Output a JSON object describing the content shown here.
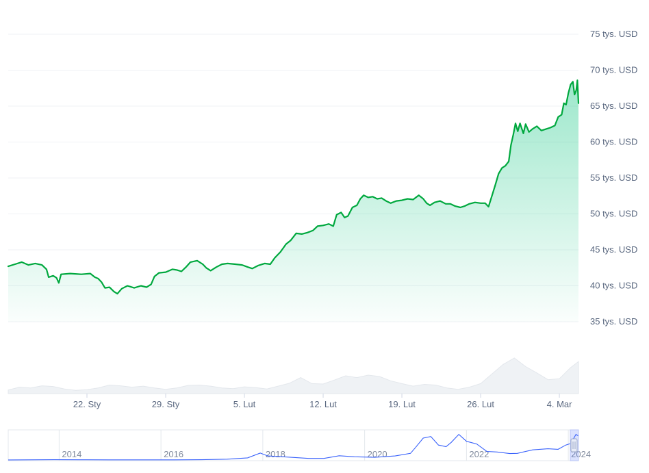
{
  "chart_data": [
    {
      "type": "area",
      "title": "",
      "xlabel": "",
      "ylabel": "",
      "ylim": [
        35000,
        75000
      ],
      "y_ticks": [
        {
          "value": 75000,
          "label": "75 tys. USD"
        },
        {
          "value": 70000,
          "label": "70 tys. USD"
        },
        {
          "value": 65000,
          "label": "65 tys. USD"
        },
        {
          "value": 60000,
          "label": "60 tys. USD"
        },
        {
          "value": 55000,
          "label": "55 tys. USD"
        },
        {
          "value": 50000,
          "label": "50 tys. USD"
        },
        {
          "value": 45000,
          "label": "45 tys. USD"
        },
        {
          "value": 40000,
          "label": "40 tys. USD"
        },
        {
          "value": 35000,
          "label": "35 tys. USD"
        }
      ],
      "x_ticks": [
        {
          "day": 7,
          "label": "22. Sty"
        },
        {
          "day": 14,
          "label": "29. Sty"
        },
        {
          "day": 21,
          "label": "5. Lut"
        },
        {
          "day": 28,
          "label": "12. Lut"
        },
        {
          "day": 35,
          "label": "19. Lut"
        },
        {
          "day": 42,
          "label": "26. Lut"
        },
        {
          "day": 49,
          "label": "4. Mar"
        }
      ],
      "x_range_days": [
        0,
        50.7
      ],
      "grid": true,
      "line_color": "#16c784",
      "line_stroke": "#00a83e",
      "series": [
        {
          "values": [
            [
              0.0,
              42700
            ],
            [
              0.6,
              43000
            ],
            [
              1.2,
              43300
            ],
            [
              1.8,
              42900
            ],
            [
              2.4,
              43100
            ],
            [
              3.0,
              42900
            ],
            [
              3.4,
              42300
            ],
            [
              3.6,
              41200
            ],
            [
              4.0,
              41400
            ],
            [
              4.3,
              41100
            ],
            [
              4.5,
              40400
            ],
            [
              4.7,
              41600
            ],
            [
              5.5,
              41700
            ],
            [
              6.5,
              41600
            ],
            [
              7.3,
              41700
            ],
            [
              7.7,
              41200
            ],
            [
              8.0,
              41000
            ],
            [
              8.3,
              40500
            ],
            [
              8.6,
              39700
            ],
            [
              9.0,
              39800
            ],
            [
              9.4,
              39200
            ],
            [
              9.7,
              38900
            ],
            [
              10.1,
              39600
            ],
            [
              10.6,
              40000
            ],
            [
              11.2,
              39700
            ],
            [
              11.8,
              40000
            ],
            [
              12.3,
              39800
            ],
            [
              12.7,
              40200
            ],
            [
              13.0,
              41300
            ],
            [
              13.4,
              41800
            ],
            [
              14.0,
              41900
            ],
            [
              14.6,
              42300
            ],
            [
              15.0,
              42200
            ],
            [
              15.4,
              42000
            ],
            [
              15.8,
              42600
            ],
            [
              16.2,
              43300
            ],
            [
              16.8,
              43500
            ],
            [
              17.3,
              43000
            ],
            [
              17.6,
              42500
            ],
            [
              18.0,
              42100
            ],
            [
              18.5,
              42600
            ],
            [
              19.0,
              43000
            ],
            [
              19.5,
              43100
            ],
            [
              20.2,
              43000
            ],
            [
              20.8,
              42900
            ],
            [
              21.3,
              42600
            ],
            [
              21.7,
              42400
            ],
            [
              22.2,
              42800
            ],
            [
              22.8,
              43100
            ],
            [
              23.3,
              43000
            ],
            [
              23.7,
              43900
            ],
            [
              24.2,
              44700
            ],
            [
              24.7,
              45800
            ],
            [
              25.1,
              46300
            ],
            [
              25.6,
              47300
            ],
            [
              26.1,
              47200
            ],
            [
              26.6,
              47400
            ],
            [
              27.1,
              47700
            ],
            [
              27.5,
              48300
            ],
            [
              28.0,
              48400
            ],
            [
              28.5,
              48600
            ],
            [
              28.9,
              48300
            ],
            [
              29.2,
              49900
            ],
            [
              29.6,
              50200
            ],
            [
              29.9,
              49500
            ],
            [
              30.2,
              49700
            ],
            [
              30.6,
              50900
            ],
            [
              31.0,
              51200
            ],
            [
              31.3,
              52100
            ],
            [
              31.6,
              52600
            ],
            [
              32.0,
              52300
            ],
            [
              32.4,
              52400
            ],
            [
              32.8,
              52100
            ],
            [
              33.2,
              52200
            ],
            [
              33.6,
              51800
            ],
            [
              34.0,
              51500
            ],
            [
              34.5,
              51800
            ],
            [
              35.0,
              51900
            ],
            [
              35.5,
              52100
            ],
            [
              36.0,
              52000
            ],
            [
              36.5,
              52600
            ],
            [
              36.9,
              52100
            ],
            [
              37.2,
              51500
            ],
            [
              37.5,
              51200
            ],
            [
              37.9,
              51600
            ],
            [
              38.4,
              51800
            ],
            [
              38.9,
              51400
            ],
            [
              39.3,
              51400
            ],
            [
              39.7,
              51100
            ],
            [
              40.2,
              50900
            ],
            [
              40.6,
              51100
            ],
            [
              41.0,
              51400
            ],
            [
              41.5,
              51600
            ],
            [
              42.0,
              51500
            ],
            [
              42.4,
              51500
            ],
            [
              42.7,
              51000
            ],
            [
              43.0,
              52500
            ],
            [
              43.3,
              54000
            ],
            [
              43.6,
              55600
            ],
            [
              43.9,
              56400
            ],
            [
              44.2,
              56700
            ],
            [
              44.5,
              57300
            ],
            [
              44.7,
              59600
            ],
            [
              44.9,
              61000
            ],
            [
              45.1,
              62600
            ],
            [
              45.3,
              61500
            ],
            [
              45.5,
              62600
            ],
            [
              45.8,
              61200
            ],
            [
              46.0,
              62500
            ],
            [
              46.3,
              61400
            ],
            [
              46.6,
              61800
            ],
            [
              47.0,
              62200
            ],
            [
              47.4,
              61600
            ],
            [
              47.8,
              61800
            ],
            [
              48.2,
              62000
            ],
            [
              48.6,
              62300
            ],
            [
              48.9,
              63500
            ],
            [
              49.2,
              63800
            ],
            [
              49.4,
              65400
            ],
            [
              49.6,
              65200
            ],
            [
              49.8,
              66800
            ],
            [
              50.0,
              68000
            ],
            [
              50.2,
              68400
            ],
            [
              50.35,
              66600
            ],
            [
              50.5,
              67200
            ],
            [
              50.6,
              68600
            ],
            [
              50.7,
              65400
            ]
          ]
        }
      ]
    },
    {
      "type": "area",
      "title": "",
      "xlabel": "",
      "ylabel": "",
      "grid": false,
      "fill_color": "#eff2f5",
      "series": [
        {
          "values": [
            [
              0,
              0.1
            ],
            [
              1,
              0.18
            ],
            [
              2,
              0.16
            ],
            [
              3,
              0.22
            ],
            [
              4,
              0.2
            ],
            [
              5,
              0.13
            ],
            [
              6,
              0.09
            ],
            [
              7,
              0.11
            ],
            [
              8,
              0.16
            ],
            [
              9,
              0.24
            ],
            [
              10,
              0.22
            ],
            [
              11,
              0.18
            ],
            [
              12,
              0.21
            ],
            [
              13,
              0.16
            ],
            [
              14,
              0.12
            ],
            [
              15,
              0.16
            ],
            [
              16,
              0.23
            ],
            [
              17,
              0.24
            ],
            [
              18,
              0.21
            ],
            [
              19,
              0.16
            ],
            [
              20,
              0.14
            ],
            [
              21,
              0.19
            ],
            [
              22,
              0.17
            ],
            [
              23,
              0.13
            ],
            [
              24,
              0.21
            ],
            [
              25,
              0.29
            ],
            [
              26,
              0.45
            ],
            [
              27,
              0.28
            ],
            [
              28,
              0.27
            ],
            [
              29,
              0.38
            ],
            [
              30,
              0.5
            ],
            [
              31,
              0.45
            ],
            [
              32,
              0.52
            ],
            [
              33,
              0.48
            ],
            [
              34,
              0.36
            ],
            [
              35,
              0.28
            ],
            [
              36,
              0.21
            ],
            [
              37,
              0.26
            ],
            [
              38,
              0.24
            ],
            [
              39,
              0.16
            ],
            [
              40,
              0.12
            ],
            [
              41,
              0.18
            ],
            [
              42,
              0.28
            ],
            [
              43,
              0.55
            ],
            [
              44,
              0.82
            ],
            [
              45,
              1.0
            ],
            [
              46,
              0.76
            ],
            [
              47,
              0.58
            ],
            [
              48,
              0.39
            ],
            [
              49,
              0.42
            ],
            [
              50,
              0.73
            ],
            [
              50.7,
              0.9
            ]
          ]
        }
      ]
    },
    {
      "type": "line",
      "title": "",
      "xlabel": "",
      "ylabel": "",
      "grid": true,
      "line_color": "#3861fb",
      "x_ticks": [
        "2014",
        "2016",
        "2018",
        "2020",
        "2022",
        "2024"
      ],
      "x_range": [
        2013.0,
        2024.2
      ],
      "series": [
        {
          "values": [
            [
              2013.0,
              0.002
            ],
            [
              2013.9,
              0.01
            ],
            [
              2014.4,
              0.008
            ],
            [
              2015.0,
              0.004
            ],
            [
              2015.6,
              0.004
            ],
            [
              2016.2,
              0.006
            ],
            [
              2016.8,
              0.01
            ],
            [
              2017.3,
              0.03
            ],
            [
              2017.7,
              0.08
            ],
            [
              2017.95,
              0.26
            ],
            [
              2018.1,
              0.15
            ],
            [
              2018.4,
              0.12
            ],
            [
              2018.9,
              0.06
            ],
            [
              2019.2,
              0.06
            ],
            [
              2019.5,
              0.16
            ],
            [
              2019.8,
              0.12
            ],
            [
              2020.2,
              0.1
            ],
            [
              2020.6,
              0.15
            ],
            [
              2020.9,
              0.25
            ],
            [
              2021.0,
              0.47
            ],
            [
              2021.15,
              0.82
            ],
            [
              2021.3,
              0.88
            ],
            [
              2021.45,
              0.56
            ],
            [
              2021.6,
              0.5
            ],
            [
              2021.7,
              0.66
            ],
            [
              2021.85,
              0.96
            ],
            [
              2022.0,
              0.7
            ],
            [
              2022.2,
              0.6
            ],
            [
              2022.4,
              0.32
            ],
            [
              2022.6,
              0.3
            ],
            [
              2022.85,
              0.24
            ],
            [
              2023.0,
              0.25
            ],
            [
              2023.3,
              0.38
            ],
            [
              2023.6,
              0.42
            ],
            [
              2023.8,
              0.4
            ],
            [
              2023.95,
              0.56
            ],
            [
              2024.05,
              0.62
            ],
            [
              2024.15,
              0.96
            ],
            [
              2024.2,
              0.9
            ]
          ]
        }
      ]
    }
  ]
}
